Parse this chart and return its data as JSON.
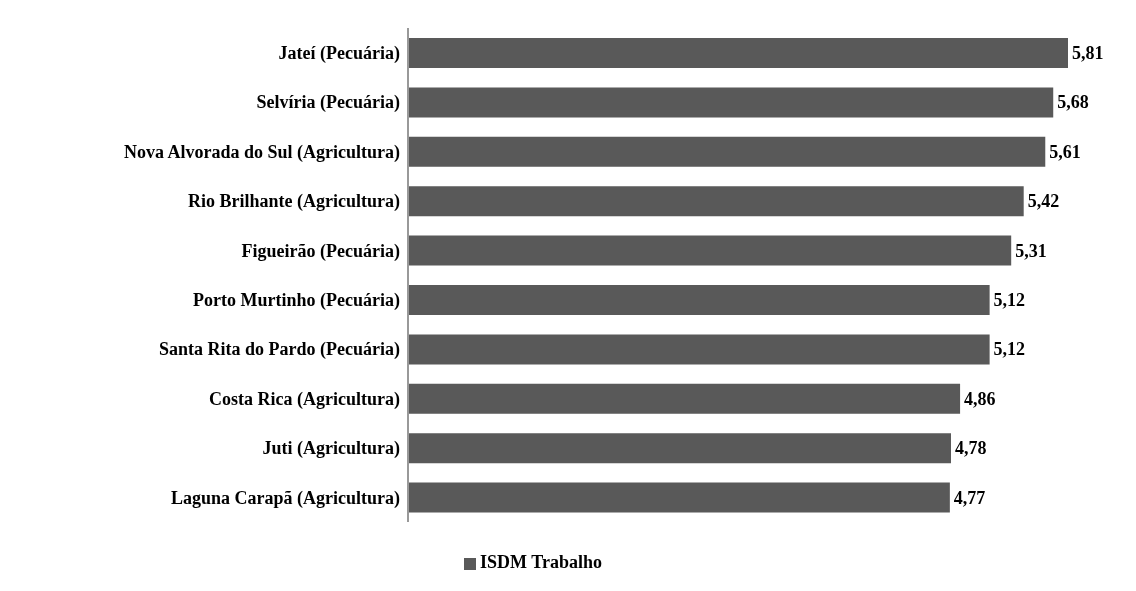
{
  "chart_data": {
    "type": "bar",
    "orientation": "horizontal",
    "categories": [
      "Jateí (Pecuária)",
      "Selvíria (Pecuária)",
      "Nova Alvorada do Sul (Agricultura)",
      "Rio Brilhante (Agricultura)",
      "Figueirão (Pecuária)",
      "Porto Murtinho (Pecuária)",
      "Santa Rita do Pardo (Pecuária)",
      "Costa Rica (Agricultura)",
      "Juti (Agricultura)",
      "Laguna Carapã (Agricultura)"
    ],
    "series": [
      {
        "name": "ISDM Trabalho",
        "color": "#595959",
        "values": [
          5.81,
          5.68,
          5.61,
          5.42,
          5.31,
          5.12,
          5.12,
          4.86,
          4.78,
          4.77
        ],
        "value_labels": [
          "5,81",
          "5,68",
          "5,61",
          "5,42",
          "5,31",
          "5,12",
          "5,12",
          "4,86",
          "4,78",
          "4,77"
        ]
      }
    ],
    "legend": "bottom",
    "grid": false
  }
}
